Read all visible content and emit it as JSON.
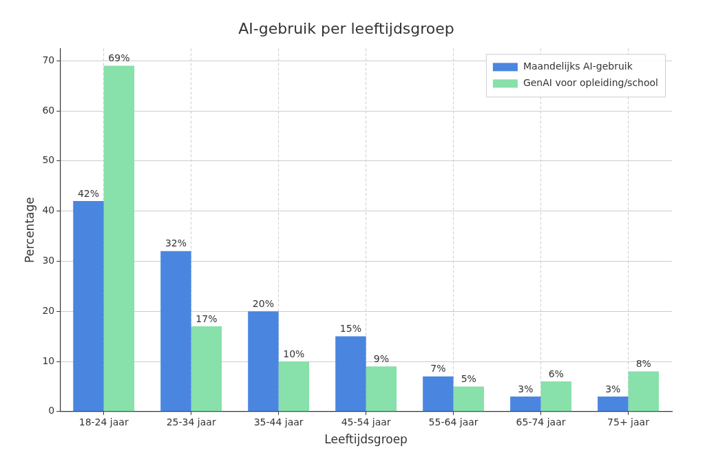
{
  "chart_data": {
    "type": "bar",
    "title": "AI-gebruik per leeftijdsgroep",
    "x_label": "Leeftijdsgroep",
    "y_label": "Percentage",
    "categories": [
      "18-24 jaar",
      "25-34 jaar",
      "35-44 jaar",
      "45-54 jaar",
      "55-64 jaar",
      "65-74 jaar",
      "75+ jaar"
    ],
    "series": [
      {
        "name": "Maandelijks AI-gebruik",
        "color": "#4a86e0",
        "values": [
          42,
          32,
          20,
          15,
          7,
          3,
          3
        ],
        "value_labels": [
          "42%",
          "32%",
          "20%",
          "15%",
          "7%",
          "3%",
          "3%"
        ]
      },
      {
        "name": "GenAI voor opleiding/school",
        "color": "#88e0aa",
        "values": [
          69,
          17,
          10,
          9,
          5,
          6,
          8
        ],
        "value_labels": [
          "69%",
          "17%",
          "10%",
          "9%",
          "5%",
          "6%",
          "8%"
        ]
      }
    ],
    "ylim": [
      0,
      72.45
    ],
    "yticks": [
      0,
      10,
      20,
      30,
      40,
      50,
      60,
      70
    ],
    "grid": true,
    "legend": "upper right",
    "data_labels": true
  }
}
